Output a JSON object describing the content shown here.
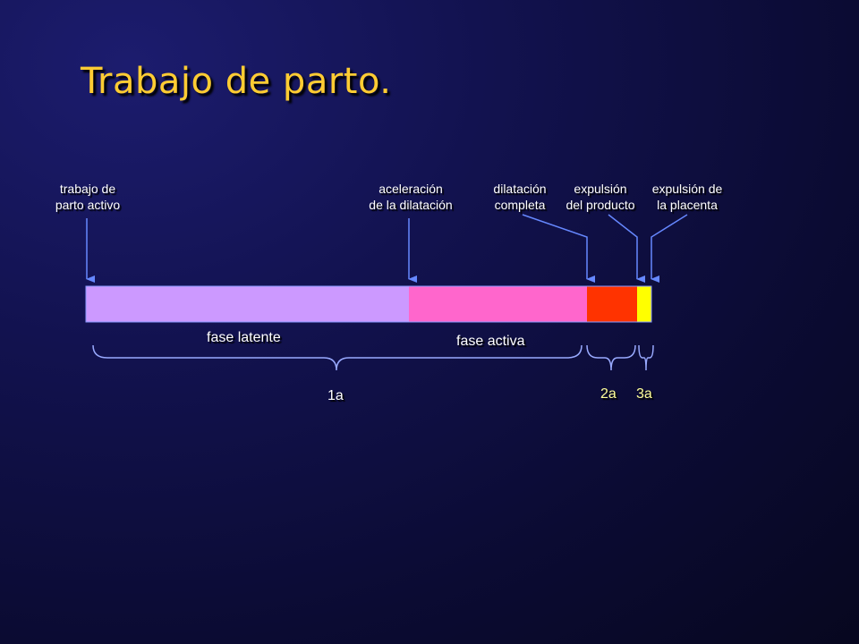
{
  "title": "Trabajo de parto.",
  "events": [
    {
      "line1": "trabajo de",
      "line2": "parto activo"
    },
    {
      "line1": "aceleración",
      "line2": "de la dilatación"
    },
    {
      "line1": "dilatación",
      "line2": "completa"
    },
    {
      "line1": "expulsión",
      "line2": "del producto"
    },
    {
      "line1": "expulsión de",
      "line2": "la placenta"
    }
  ],
  "segments": [
    {
      "name": "fase latente",
      "color": "#cc99ff"
    },
    {
      "name": "fase activa",
      "color": "#ff66cc"
    },
    {
      "name": "",
      "color": "#ff3300"
    },
    {
      "name": "",
      "color": "#ffff00"
    }
  ],
  "stages": [
    {
      "label": "1a"
    },
    {
      "label": "2a"
    },
    {
      "label": "3a"
    }
  ],
  "colors": {
    "title": "#ffcc33",
    "arrow": "#6688ff",
    "bracket": "#99aaff",
    "background": "#12124f"
  }
}
